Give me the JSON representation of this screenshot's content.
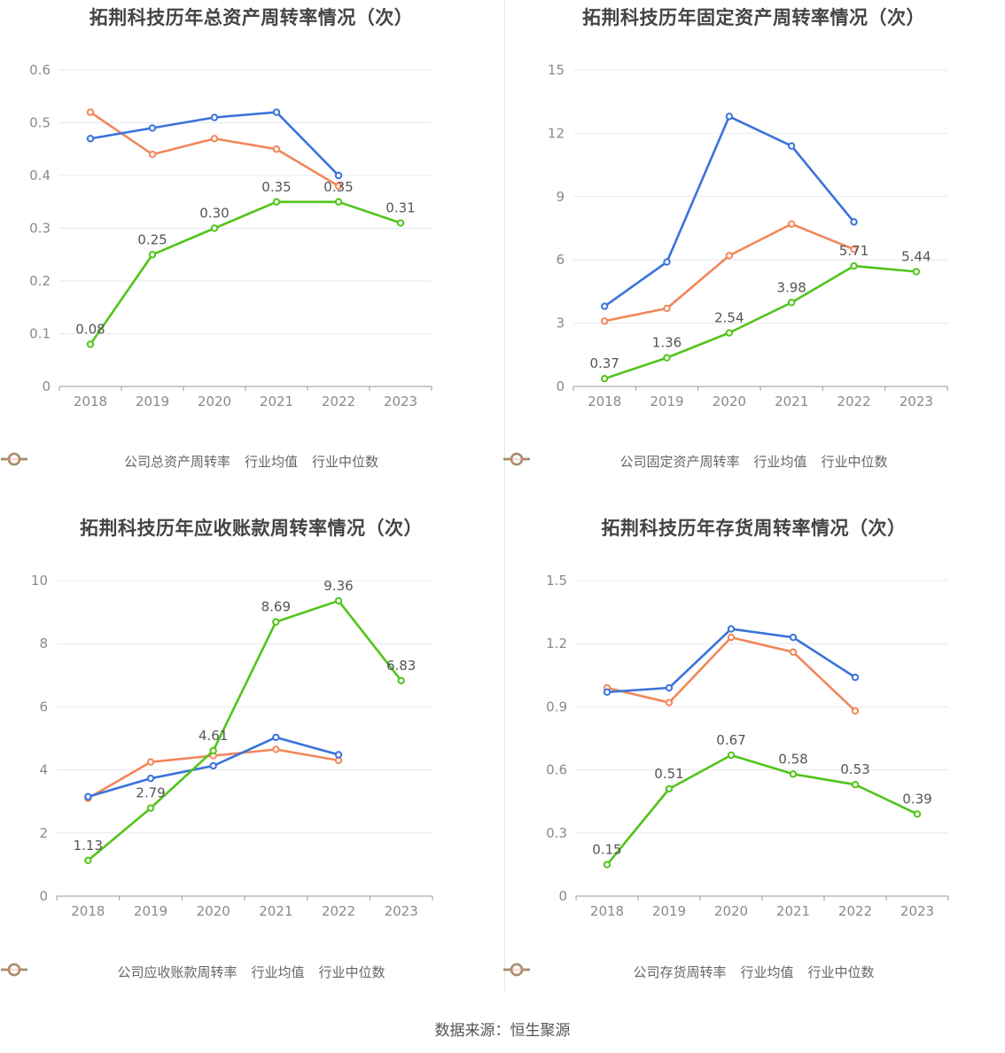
{
  "colors": {
    "company": "#52c41a",
    "average": "#3a73db",
    "median": "#f2875a",
    "grid": "#e6e8f0",
    "axis": "#999999",
    "tick": "#8a8a8a"
  },
  "legend_labels": {
    "average": "行业均值",
    "median": "行业中位数"
  },
  "source": "数据来源：恒生聚源",
  "chart_data": [
    {
      "type": "line",
      "title": "拓荆科技历年总资产周转率情况（次）",
      "x": [
        "2018",
        "2019",
        "2020",
        "2021",
        "2022",
        "2023"
      ],
      "ylim": [
        0,
        0.6
      ],
      "yticks": [
        0,
        0.1,
        0.2,
        0.3,
        0.4,
        0.5,
        0.6
      ],
      "ytick_labels": [
        "0",
        "0.1",
        "0.2",
        "0.3",
        "0.4",
        "0.5",
        "0.6"
      ],
      "series": [
        {
          "name": "公司总资产周转率",
          "role": "company",
          "values": [
            0.08,
            0.25,
            0.3,
            0.35,
            0.35,
            0.31
          ],
          "labels": [
            "0.08",
            "0.25",
            "0.30",
            "0.35",
            "0.35",
            "0.31"
          ]
        },
        {
          "name": "行业均值",
          "role": "average",
          "values": [
            0.47,
            0.49,
            0.51,
            0.52,
            0.4,
            null
          ]
        },
        {
          "name": "行业中位数",
          "role": "median",
          "values": [
            0.52,
            0.44,
            0.47,
            0.45,
            0.38,
            null
          ]
        }
      ]
    },
    {
      "type": "line",
      "title": "拓荆科技历年固定资产周转率情况（次）",
      "x": [
        "2018",
        "2019",
        "2020",
        "2021",
        "2022",
        "2023"
      ],
      "ylim": [
        0,
        15
      ],
      "yticks": [
        0,
        3,
        6,
        9,
        12,
        15
      ],
      "ytick_labels": [
        "0",
        "3",
        "6",
        "9",
        "12",
        "15"
      ],
      "series": [
        {
          "name": "公司固定资产周转率",
          "role": "company",
          "values": [
            0.37,
            1.36,
            2.54,
            3.98,
            5.71,
            5.44
          ],
          "labels": [
            "0.37",
            "1.36",
            "2.54",
            "3.98",
            "5.71",
            "5.44"
          ]
        },
        {
          "name": "行业均值",
          "role": "average",
          "values": [
            3.8,
            5.9,
            12.8,
            11.4,
            7.8,
            null
          ]
        },
        {
          "name": "行业中位数",
          "role": "median",
          "values": [
            3.1,
            3.7,
            6.2,
            7.7,
            6.5,
            null
          ]
        }
      ]
    },
    {
      "type": "line",
      "title": "拓荆科技历年应收账款周转率情况（次）",
      "x": [
        "2018",
        "2019",
        "2020",
        "2021",
        "2022",
        "2023"
      ],
      "ylim": [
        0,
        10
      ],
      "yticks": [
        0,
        2,
        4,
        6,
        8,
        10
      ],
      "ytick_labels": [
        "0",
        "2",
        "4",
        "6",
        "8",
        "10"
      ],
      "series": [
        {
          "name": "公司应收账款周转率",
          "role": "company",
          "values": [
            1.13,
            2.79,
            4.61,
            8.69,
            9.36,
            6.83
          ],
          "labels": [
            "1.13",
            "2.79",
            "4.61",
            "8.69",
            "9.36",
            "6.83"
          ]
        },
        {
          "name": "行业均值",
          "role": "average",
          "values": [
            3.15,
            3.73,
            4.13,
            5.03,
            4.48,
            null
          ]
        },
        {
          "name": "行业中位数",
          "role": "median",
          "values": [
            3.1,
            4.25,
            4.45,
            4.65,
            4.3,
            null
          ]
        }
      ]
    },
    {
      "type": "line",
      "title": "拓荆科技历年存货周转率情况（次）",
      "x": [
        "2018",
        "2019",
        "2020",
        "2021",
        "2022",
        "2023"
      ],
      "ylim": [
        0,
        1.5
      ],
      "yticks": [
        0,
        0.3,
        0.6,
        0.9,
        1.2,
        1.5
      ],
      "ytick_labels": [
        "0",
        "0.3",
        "0.6",
        "0.9",
        "1.2",
        "1.5"
      ],
      "series": [
        {
          "name": "公司存货周转率",
          "role": "company",
          "values": [
            0.15,
            0.51,
            0.67,
            0.58,
            0.53,
            0.39
          ],
          "labels": [
            "0.15",
            "0.51",
            "0.67",
            "0.58",
            "0.53",
            "0.39"
          ]
        },
        {
          "name": "行业均值",
          "role": "average",
          "values": [
            0.97,
            0.99,
            1.27,
            1.23,
            1.04,
            null
          ]
        },
        {
          "name": "行业中位数",
          "role": "median",
          "values": [
            0.99,
            0.92,
            1.23,
            1.16,
            0.88,
            null
          ]
        }
      ]
    }
  ]
}
